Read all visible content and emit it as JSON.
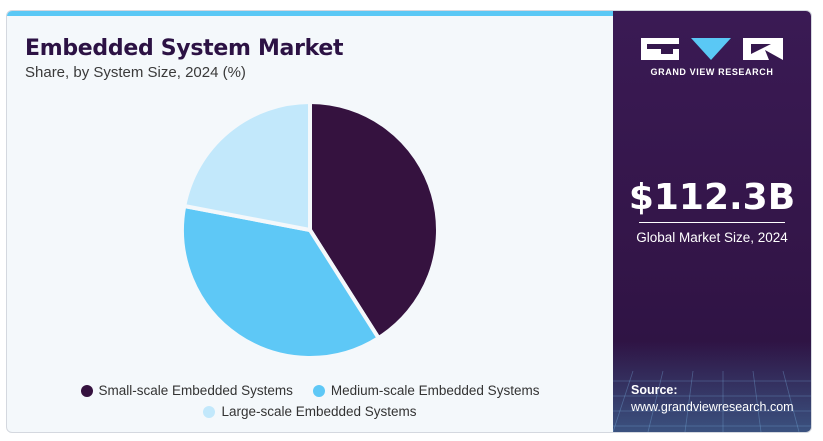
{
  "header": {
    "title": "Embedded System Market",
    "subtitle": "Share, by System Size, 2024 (%)"
  },
  "colors": {
    "small": "#35123f",
    "medium": "#5ec8f6",
    "large": "#c2e8fb",
    "panel": "#35174d",
    "accent": "#5ac8f5"
  },
  "chart_data": {
    "type": "pie",
    "title": "Embedded System Market",
    "subtitle": "Share, by System Size, 2024 (%)",
    "categories": [
      "Small-scale Embedded Systems",
      "Medium-scale Embedded Systems",
      "Large-scale Embedded Systems"
    ],
    "values": [
      41,
      37,
      22
    ],
    "colors": [
      "#35123f",
      "#5ec8f6",
      "#c2e8fb"
    ],
    "legend_position": "bottom"
  },
  "legend": {
    "items": [
      {
        "label": "Small-scale Embedded Systems",
        "color": "#35123f"
      },
      {
        "label": "Medium-scale Embedded Systems",
        "color": "#5ec8f6"
      },
      {
        "label": "Large-scale Embedded Systems",
        "color": "#c2e8fb"
      }
    ]
  },
  "panel": {
    "brand": "GRAND VIEW RESEARCH",
    "market_size": "$112.3B",
    "market_label": "Global Market Size, 2024",
    "source_label": "Source:",
    "source_url": "www.grandviewresearch.com"
  }
}
